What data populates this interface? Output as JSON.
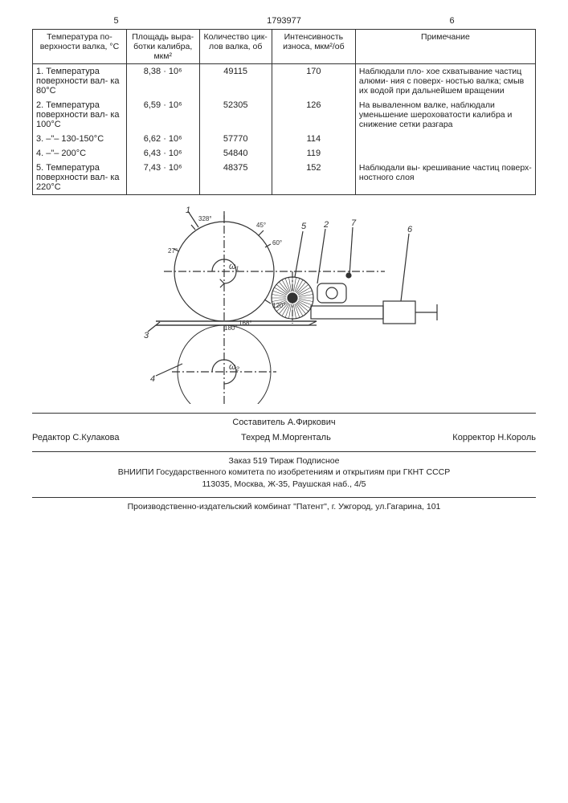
{
  "page_left": "5",
  "doc_number": "1793977",
  "page_right": "6",
  "table": {
    "headers": [
      "Температура по-\nверхности валка,\n°С",
      "Площадь выра-\nботки калибра,\nмкм²",
      "Количество цик-\nлов валка, об",
      "Интенсивность\nизноса, мкм²/об",
      "Примечание"
    ],
    "rows": [
      {
        "label": "1. Температура поверхности вал-\nка 80°С",
        "area": "8,38 · 10⁶",
        "cycles": "49115",
        "wear": "170",
        "note": "Наблюдали пло-\nхое схватывание частиц алюми-\nния с поверх-\nностью валка; смыв их водой при дальнейшем вращении"
      },
      {
        "label": "2. Температура поверхности вал-\nка 100°С",
        "area": "6,59 · 10⁶",
        "cycles": "52305",
        "wear": "126",
        "note": "На вываленном валке, наблюдали уменьшение шероховатости калибра и снижение сетки разгара"
      },
      {
        "label": "3. –\"– 130-150°С",
        "area": "6,62 · 10⁶",
        "cycles": "57770",
        "wear": "114",
        "note": ""
      },
      {
        "label": "4. –\"– 200°С",
        "area": "6,43 · 10⁶",
        "cycles": "54840",
        "wear": "119",
        "note": ""
      },
      {
        "label": "5. Температура поверхности вал-\nка 220°С",
        "area": "7,43 · 10⁶",
        "cycles": "48375",
        "wear": "152",
        "note": "Наблюдали вы-\nкрешивание частиц поверх-\nностного слоя"
      }
    ]
  },
  "diagram": {
    "labels": [
      "1",
      "2",
      "3",
      "4",
      "5",
      "6",
      "7"
    ],
    "angles": [
      "328°",
      "45°",
      "60°",
      "120°",
      "27°",
      "180°",
      "168°"
    ],
    "omega_top": "ω₁",
    "omega_bot": "ω₂",
    "stroke": "#333",
    "r_big": 62,
    "r_brush": 26
  },
  "credits": {
    "compiler": "Составитель А.Фиркович",
    "editor": "Редактор С.Кулакова",
    "techred": "Техред М.Моргенталь",
    "corrector": "Корректор Н.Король",
    "order": "Заказ 519",
    "tirazh": "Тираж",
    "podpis": "Подписное",
    "org": "ВНИИПИ Государственного комитета по изобретениям и открытиям при ГКНТ СССР",
    "address": "113035, Москва, Ж-35, Раушская наб., 4/5",
    "printer": "Производственно-издательский комбинат \"Патент\", г. Ужгород, ул.Гагарина, 101"
  }
}
